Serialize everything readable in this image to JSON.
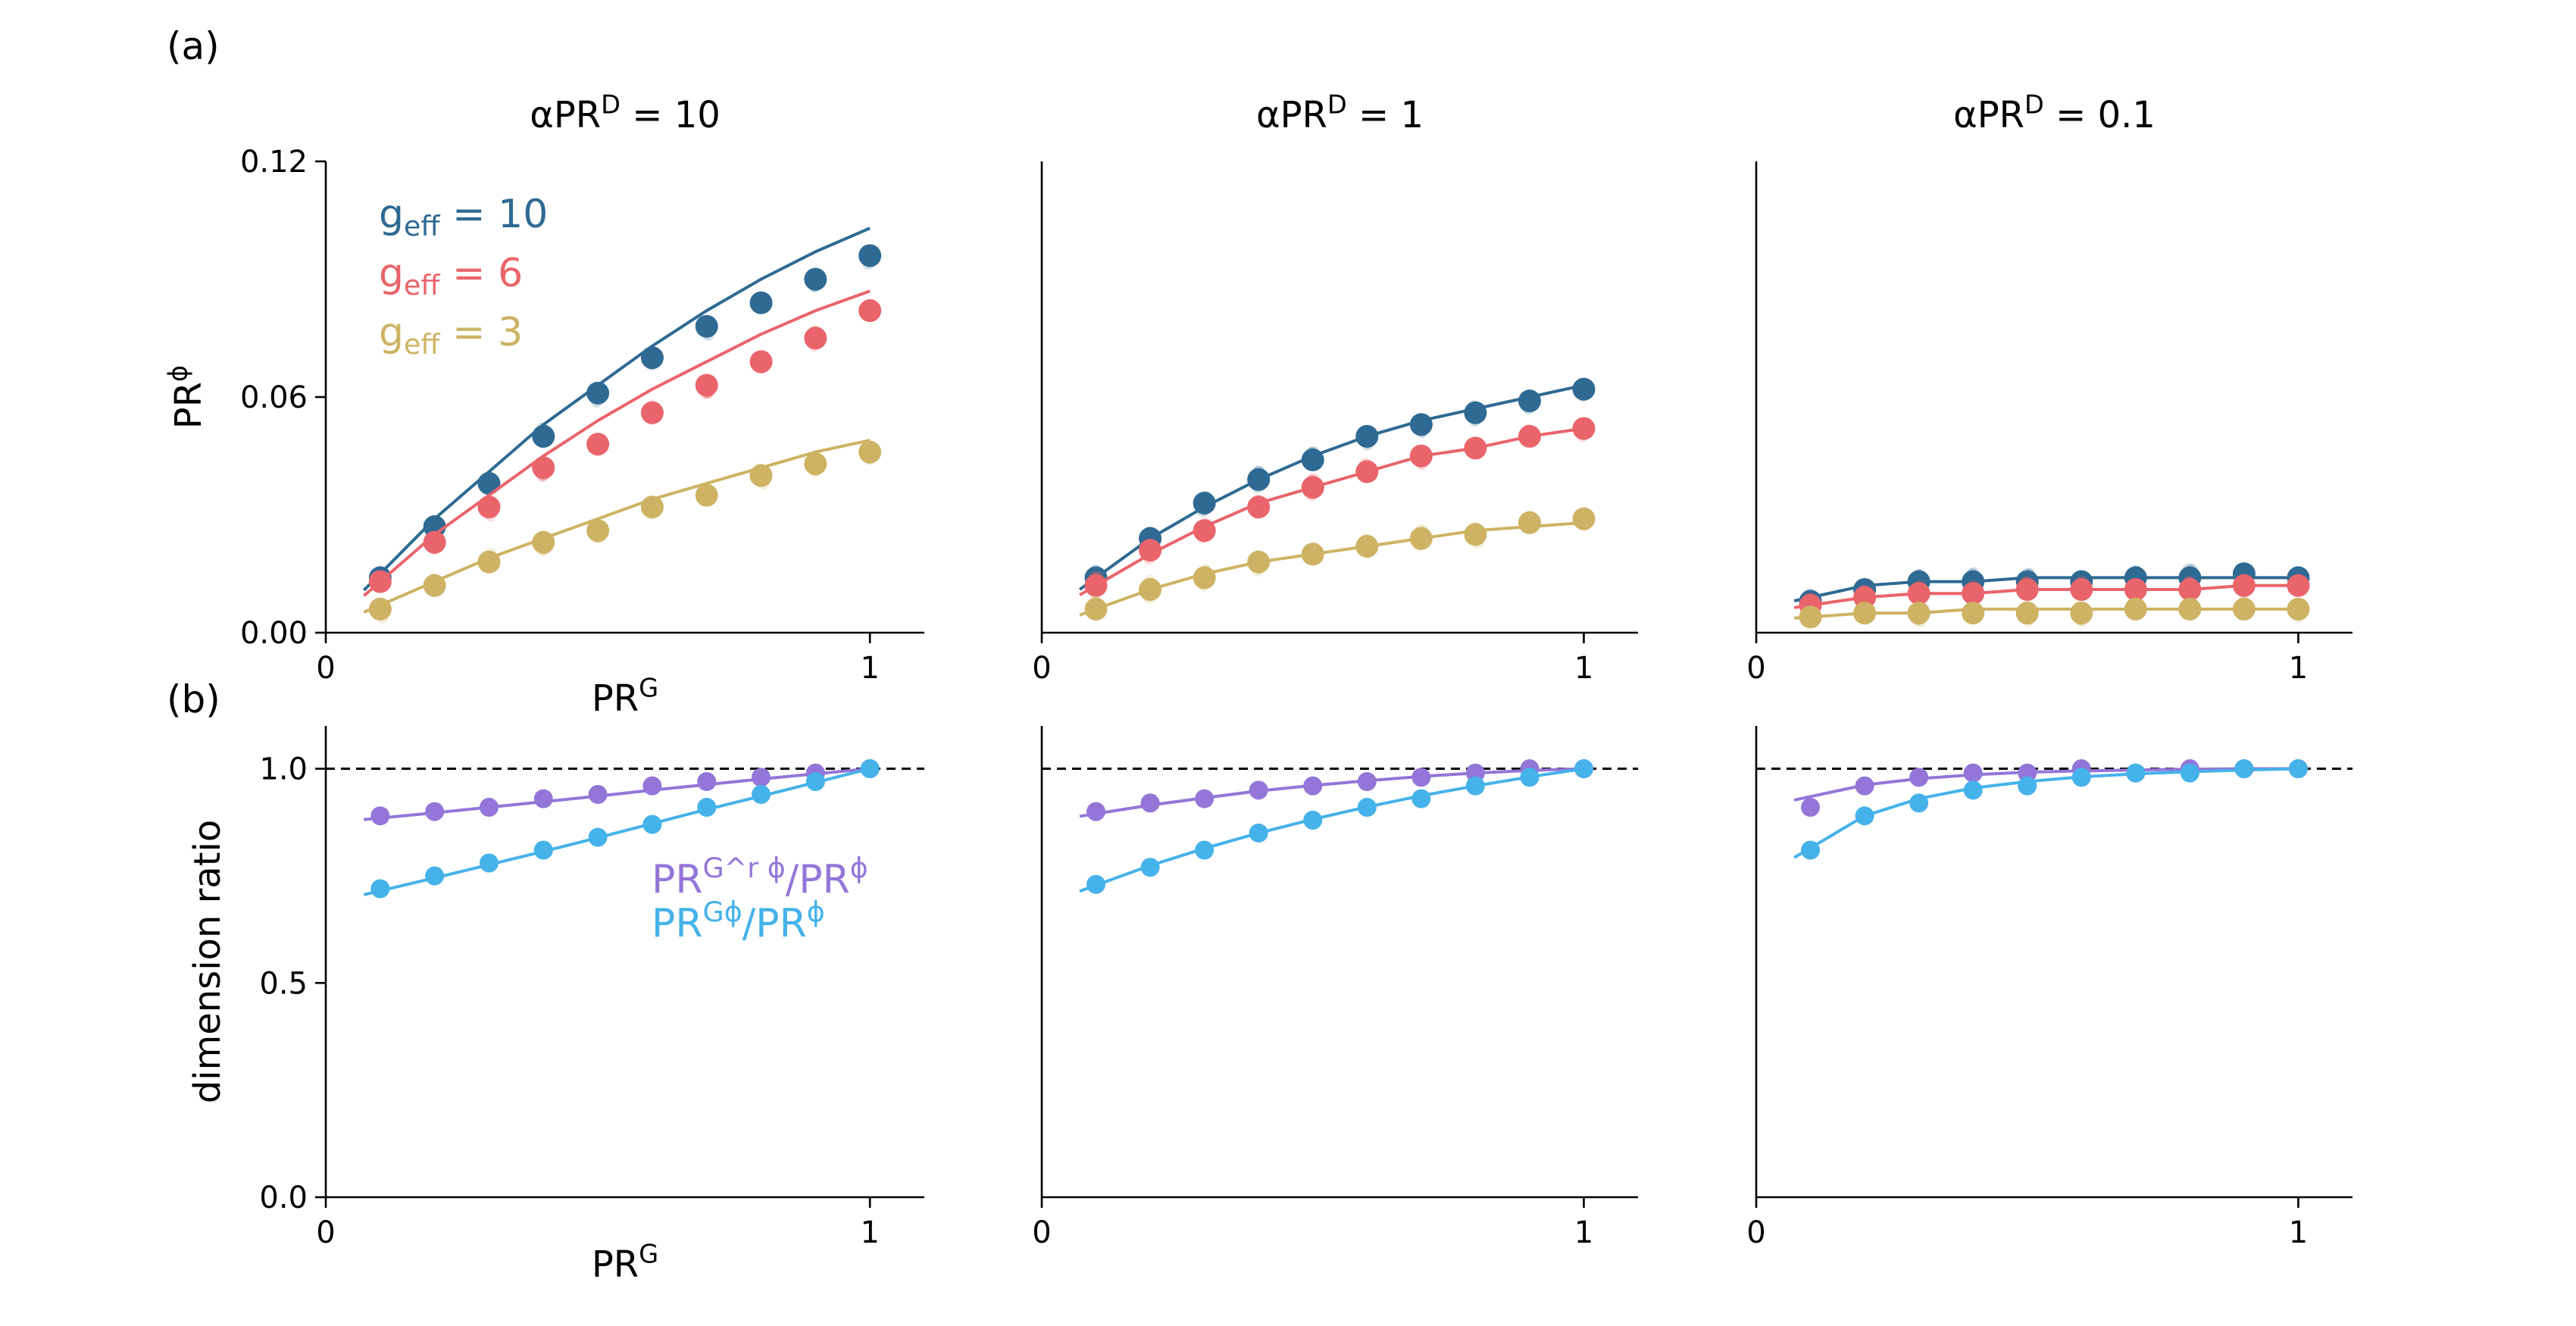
{
  "panel_labels": [
    "(a)",
    "(b)"
  ],
  "column_titles": [
    "αPR^D = 10",
    "αPR^D = 1",
    "αPR^D = 0.1"
  ],
  "colors": {
    "g10": "#2e6a93",
    "g6": "#e9646b",
    "g3": "#cdb363",
    "Grphi": "#9376d8",
    "Gphi": "#45b2ea",
    "ref": "#000000"
  },
  "chart_data": [
    {
      "type": "scatter",
      "panel": "a",
      "title": "αPR^D = 10",
      "xlabel": "PR^G",
      "ylabel": "PR^ϕ",
      "xlim": [
        0,
        1.1
      ],
      "ylim": [
        0,
        0.12
      ],
      "xticks": [
        "0",
        "1"
      ],
      "yticks": [
        "0.00",
        "0.06",
        "0.12"
      ],
      "legend": [
        "g_eff = 10",
        "g_eff = 6",
        "g_eff = 3"
      ],
      "legend_position": "top-left",
      "x": [
        0.1,
        0.2,
        0.3,
        0.4,
        0.5,
        0.6,
        0.7,
        0.8,
        0.9,
        1.0
      ],
      "series": [
        {
          "name": "g_eff = 10",
          "points": [
            0.014,
            0.027,
            0.038,
            0.05,
            0.061,
            0.07,
            0.078,
            0.084,
            0.09,
            0.096
          ],
          "theory": [
            0.015,
            0.029,
            0.041,
            0.053,
            0.063,
            0.073,
            0.082,
            0.09,
            0.097,
            0.103
          ]
        },
        {
          "name": "g_eff = 6",
          "points": [
            0.013,
            0.023,
            0.032,
            0.042,
            0.048,
            0.056,
            0.063,
            0.069,
            0.075,
            0.082
          ],
          "theory": [
            0.013,
            0.025,
            0.035,
            0.045,
            0.054,
            0.062,
            0.069,
            0.076,
            0.082,
            0.087
          ]
        },
        {
          "name": "g_eff = 3",
          "points": [
            0.006,
            0.012,
            0.018,
            0.023,
            0.026,
            0.032,
            0.035,
            0.04,
            0.043,
            0.046
          ],
          "theory": [
            0.007,
            0.013,
            0.019,
            0.024,
            0.029,
            0.034,
            0.038,
            0.042,
            0.046,
            0.049
          ]
        }
      ]
    },
    {
      "type": "scatter",
      "panel": "a",
      "title": "αPR^D = 1",
      "xlim": [
        0,
        1.1
      ],
      "ylim": [
        0,
        0.12
      ],
      "xticks": [
        "0",
        "1"
      ],
      "x": [
        0.1,
        0.2,
        0.3,
        0.4,
        0.5,
        0.6,
        0.7,
        0.8,
        0.9,
        1.0
      ],
      "series": [
        {
          "name": "g_eff = 10",
          "points": [
            0.014,
            0.024,
            0.033,
            0.039,
            0.044,
            0.05,
            0.053,
            0.056,
            0.059,
            0.062
          ],
          "theory": [
            0.014,
            0.024,
            0.032,
            0.039,
            0.045,
            0.05,
            0.054,
            0.057,
            0.06,
            0.063
          ]
        },
        {
          "name": "g_eff = 6",
          "points": [
            0.012,
            0.021,
            0.026,
            0.032,
            0.037,
            0.041,
            0.045,
            0.047,
            0.05,
            0.052
          ],
          "theory": [
            0.012,
            0.02,
            0.027,
            0.033,
            0.037,
            0.041,
            0.045,
            0.047,
            0.05,
            0.052
          ]
        },
        {
          "name": "g_eff = 3",
          "points": [
            0.006,
            0.011,
            0.014,
            0.018,
            0.02,
            0.022,
            0.024,
            0.025,
            0.028,
            0.029
          ],
          "theory": [
            0.006,
            0.011,
            0.015,
            0.018,
            0.02,
            0.022,
            0.024,
            0.026,
            0.027,
            0.028
          ]
        }
      ]
    },
    {
      "type": "scatter",
      "panel": "a",
      "title": "αPR^D = 0.1",
      "xlim": [
        0,
        1.1
      ],
      "ylim": [
        0,
        0.12
      ],
      "xticks": [
        "0",
        "1"
      ],
      "x": [
        0.1,
        0.2,
        0.3,
        0.4,
        0.5,
        0.6,
        0.7,
        0.8,
        0.9,
        1.0
      ],
      "series": [
        {
          "name": "g_eff = 10",
          "points": [
            0.008,
            0.011,
            0.013,
            0.013,
            0.013,
            0.013,
            0.014,
            0.014,
            0.015,
            0.014
          ],
          "theory": [
            0.009,
            0.012,
            0.013,
            0.013,
            0.014,
            0.014,
            0.014,
            0.014,
            0.014,
            0.014
          ]
        },
        {
          "name": "g_eff = 6",
          "points": [
            0.007,
            0.009,
            0.01,
            0.01,
            0.011,
            0.011,
            0.011,
            0.011,
            0.012,
            0.012
          ],
          "theory": [
            0.007,
            0.009,
            0.01,
            0.01,
            0.011,
            0.011,
            0.011,
            0.011,
            0.012,
            0.012
          ]
        },
        {
          "name": "g_eff = 3",
          "points": [
            0.004,
            0.005,
            0.005,
            0.005,
            0.005,
            0.005,
            0.006,
            0.006,
            0.006,
            0.006
          ],
          "theory": [
            0.004,
            0.005,
            0.005,
            0.006,
            0.006,
            0.006,
            0.006,
            0.006,
            0.006,
            0.006
          ]
        }
      ]
    },
    {
      "type": "scatter",
      "panel": "b",
      "xlabel": "PR^G",
      "ylabel": "dimension ratio",
      "xlim": [
        0,
        1.1
      ],
      "ylim": [
        0,
        1.1
      ],
      "xticks": [
        "0",
        "1"
      ],
      "yticks": [
        "0.0",
        "0.5",
        "1.0"
      ],
      "reference_line": 1.0,
      "legend": [
        "PR^{G^r ϕ}/PR^ϕ",
        "PR^{Gϕ}/PR^ϕ"
      ],
      "legend_position": "center-right",
      "x": [
        0.1,
        0.2,
        0.3,
        0.4,
        0.5,
        0.6,
        0.7,
        0.8,
        0.9,
        1.0
      ],
      "series": [
        {
          "name": "PR^{G^r ϕ}/PR^ϕ",
          "points": [
            0.89,
            0.9,
            0.91,
            0.93,
            0.94,
            0.96,
            0.97,
            0.98,
            0.99,
            1.0
          ],
          "theory": [
            0.885,
            0.897,
            0.91,
            0.923,
            0.936,
            0.95,
            0.963,
            0.976,
            0.988,
            1.0
          ]
        },
        {
          "name": "PR^{Gϕ}/PR^ϕ",
          "points": [
            0.72,
            0.75,
            0.78,
            0.81,
            0.84,
            0.87,
            0.91,
            0.94,
            0.97,
            1.0
          ],
          "theory": [
            0.715,
            0.745,
            0.776,
            0.807,
            0.839,
            0.872,
            0.905,
            0.936,
            0.968,
            1.0
          ]
        }
      ]
    },
    {
      "type": "scatter",
      "panel": "b",
      "xlim": [
        0,
        1.1
      ],
      "ylim": [
        0,
        1.1
      ],
      "xticks": [
        "0",
        "1"
      ],
      "reference_line": 1.0,
      "x": [
        0.1,
        0.2,
        0.3,
        0.4,
        0.5,
        0.6,
        0.7,
        0.8,
        0.9,
        1.0
      ],
      "series": [
        {
          "name": "PR^{G^r ϕ}/PR^ϕ",
          "points": [
            0.9,
            0.92,
            0.93,
            0.95,
            0.96,
            0.97,
            0.98,
            0.99,
            1.0,
            1.0
          ],
          "theory": [
            0.895,
            0.915,
            0.932,
            0.948,
            0.961,
            0.972,
            0.982,
            0.99,
            0.996,
            1.0
          ]
        },
        {
          "name": "PR^{Gϕ}/PR^ϕ",
          "points": [
            0.73,
            0.77,
            0.81,
            0.85,
            0.88,
            0.91,
            0.93,
            0.96,
            0.98,
            1.0
          ],
          "theory": [
            0.728,
            0.774,
            0.814,
            0.85,
            0.882,
            0.911,
            0.937,
            0.96,
            0.981,
            1.0
          ]
        }
      ]
    },
    {
      "type": "scatter",
      "panel": "b",
      "xlim": [
        0,
        1.1
      ],
      "ylim": [
        0,
        1.1
      ],
      "xticks": [
        "0",
        "1"
      ],
      "reference_line": 1.0,
      "x": [
        0.1,
        0.2,
        0.3,
        0.4,
        0.5,
        0.6,
        0.7,
        0.8,
        0.9,
        1.0
      ],
      "series": [
        {
          "name": "PR^{G^r ϕ}/PR^ϕ",
          "points": [
            0.91,
            0.96,
            0.98,
            0.99,
            0.99,
            1.0,
            0.99,
            1.0,
            1.0,
            1.0
          ],
          "theory": [
            0.935,
            0.962,
            0.977,
            0.986,
            0.992,
            0.995,
            0.997,
            0.999,
            1.0,
            1.0
          ]
        },
        {
          "name": "PR^{Gϕ}/PR^ϕ",
          "points": [
            0.81,
            0.89,
            0.92,
            0.95,
            0.96,
            0.98,
            0.99,
            0.99,
            1.0,
            1.0
          ],
          "theory": [
            0.815,
            0.89,
            0.93,
            0.955,
            0.97,
            0.981,
            0.988,
            0.993,
            0.997,
            1.0
          ]
        }
      ]
    }
  ]
}
